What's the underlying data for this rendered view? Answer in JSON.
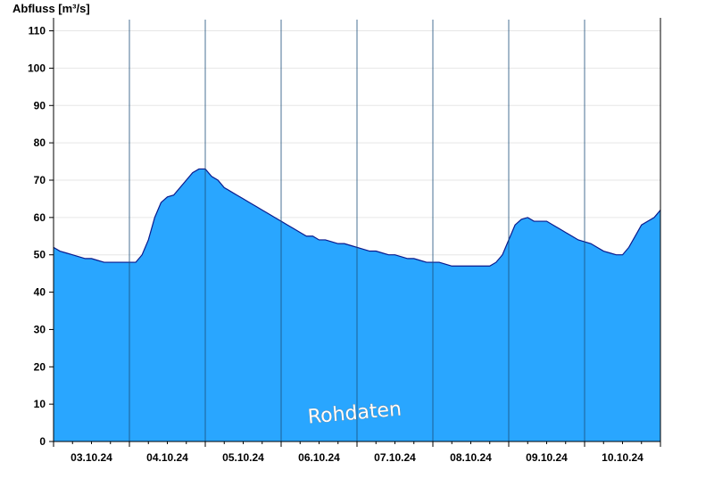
{
  "chart_data": {
    "type": "area",
    "title": "",
    "xlabel": "",
    "ylabel": "Abfluss [m³/s]",
    "ylim": [
      0,
      113
    ],
    "yticks": [
      0,
      10,
      20,
      30,
      40,
      50,
      60,
      70,
      80,
      90,
      100,
      110
    ],
    "xlim": [
      "03.10.24 00:00",
      "11.10.24 00:00"
    ],
    "xtick_labels": [
      "03.10.24",
      "04.10.24",
      "05.10.24",
      "06.10.24",
      "07.10.24",
      "08.10.24",
      "09.10.24",
      "10.10.24"
    ],
    "grid": "horizontal",
    "area_color": "#29a6ff",
    "line_color": "#0a1a8c",
    "watermark": "Rohdaten",
    "series": [
      {
        "x": [
          "03.10.24 00:00",
          "03.10.24 02:00",
          "03.10.24 04:00",
          "03.10.24 06:00",
          "03.10.24 08:00",
          "03.10.24 10:00",
          "03.10.24 12:00",
          "03.10.24 14:00",
          "03.10.24 16:00",
          "03.10.24 18:00",
          "03.10.24 20:00",
          "03.10.24 22:00",
          "04.10.24 00:00",
          "04.10.24 02:00",
          "04.10.24 04:00",
          "04.10.24 06:00",
          "04.10.24 08:00",
          "04.10.24 10:00",
          "04.10.24 12:00",
          "04.10.24 14:00",
          "04.10.24 16:00",
          "04.10.24 18:00",
          "04.10.24 20:00",
          "04.10.24 22:00",
          "05.10.24 00:00",
          "05.10.24 02:00",
          "05.10.24 04:00",
          "05.10.24 06:00",
          "05.10.24 08:00",
          "05.10.24 10:00",
          "05.10.24 12:00",
          "05.10.24 14:00",
          "05.10.24 16:00",
          "05.10.24 18:00",
          "05.10.24 20:00",
          "05.10.24 22:00",
          "06.10.24 00:00",
          "06.10.24 02:00",
          "06.10.24 04:00",
          "06.10.24 06:00",
          "06.10.24 08:00",
          "06.10.24 10:00",
          "06.10.24 12:00",
          "06.10.24 14:00",
          "06.10.24 16:00",
          "06.10.24 18:00",
          "06.10.24 20:00",
          "06.10.24 22:00",
          "07.10.24 00:00",
          "07.10.24 02:00",
          "07.10.24 04:00",
          "07.10.24 06:00",
          "07.10.24 08:00",
          "07.10.24 10:00",
          "07.10.24 12:00",
          "07.10.24 14:00",
          "07.10.24 16:00",
          "07.10.24 18:00",
          "07.10.24 20:00",
          "07.10.24 22:00",
          "08.10.24 00:00",
          "08.10.24 02:00",
          "08.10.24 04:00",
          "08.10.24 06:00",
          "08.10.24 08:00",
          "08.10.24 10:00",
          "08.10.24 12:00",
          "08.10.24 14:00",
          "08.10.24 16:00",
          "08.10.24 18:00",
          "08.10.24 20:00",
          "08.10.24 22:00",
          "09.10.24 00:00",
          "09.10.24 02:00",
          "09.10.24 04:00",
          "09.10.24 06:00",
          "09.10.24 08:00",
          "09.10.24 10:00",
          "09.10.24 12:00",
          "09.10.24 14:00",
          "09.10.24 16:00",
          "09.10.24 18:00",
          "09.10.24 20:00",
          "09.10.24 22:00",
          "10.10.24 00:00",
          "10.10.24 02:00",
          "10.10.24 04:00",
          "10.10.24 06:00",
          "10.10.24 08:00",
          "10.10.24 10:00",
          "10.10.24 12:00",
          "10.10.24 14:00",
          "10.10.24 16:00",
          "10.10.24 18:00",
          "10.10.24 20:00",
          "10.10.24 22:00",
          "11.10.24 00:00"
        ],
        "y": [
          52,
          51,
          50.5,
          50,
          49.5,
          49,
          49,
          48.5,
          48,
          48,
          48,
          48,
          48,
          48,
          50,
          54,
          60,
          64,
          65.5,
          66,
          68,
          70,
          72,
          73,
          73,
          71,
          70,
          68,
          67,
          66,
          65,
          64,
          63,
          62,
          61,
          60,
          59,
          58,
          57,
          56,
          55,
          55,
          54,
          54,
          53.5,
          53,
          53,
          52.5,
          52,
          51.5,
          51,
          51,
          50.5,
          50,
          50,
          49.5,
          49,
          49,
          48.5,
          48,
          48,
          48,
          47.5,
          47,
          47,
          47,
          47,
          47,
          47,
          47,
          48,
          50,
          54,
          58,
          59.5,
          60,
          59,
          59,
          59,
          58,
          57,
          56,
          55,
          54,
          53.5,
          53,
          52,
          51,
          50.5,
          50,
          50,
          52,
          55,
          58,
          59,
          60,
          62
        ]
      }
    ]
  }
}
